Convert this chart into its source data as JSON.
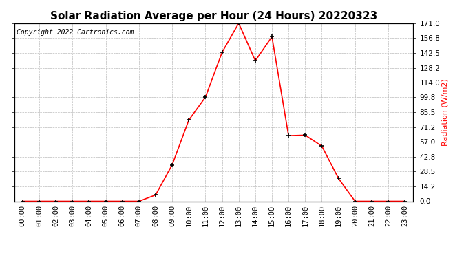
{
  "title": "Solar Radiation Average per Hour (24 Hours) 20220323",
  "copyright": "Copyright 2022 Cartronics.com",
  "ylabel": "Radiation (W/m2)",
  "hours": [
    "00:00",
    "01:00",
    "02:00",
    "03:00",
    "04:00",
    "05:00",
    "06:00",
    "07:00",
    "08:00",
    "09:00",
    "10:00",
    "11:00",
    "12:00",
    "13:00",
    "14:00",
    "15:00",
    "16:00",
    "17:00",
    "18:00",
    "19:00",
    "20:00",
    "21:00",
    "22:00",
    "23:00"
  ],
  "values": [
    0.0,
    0.0,
    0.0,
    0.0,
    0.0,
    0.0,
    0.0,
    0.0,
    6.0,
    35.0,
    78.0,
    100.0,
    143.0,
    171.0,
    135.0,
    158.0,
    63.0,
    63.5,
    53.0,
    22.0,
    0.0,
    0.0,
    0.0,
    0.0
  ],
  "line_color": "#ff0000",
  "marker": "+",
  "marker_color": "#000000",
  "marker_size": 5,
  "marker_linewidth": 1.2,
  "line_width": 1.2,
  "background_color": "#ffffff",
  "grid_color": "#bbbbbb",
  "title_fontsize": 11,
  "copyright_fontsize": 7,
  "ylabel_color": "#ff0000",
  "ylabel_fontsize": 8,
  "tick_fontsize": 7.5,
  "ylim": [
    0.0,
    171.0
  ],
  "ytick_labels": [
    "0.0",
    "14.2",
    "28.5",
    "42.8",
    "57.0",
    "71.2",
    "85.5",
    "99.8",
    "114.0",
    "128.2",
    "142.5",
    "156.8",
    "171.0"
  ],
  "ytick_values": [
    0.0,
    14.2,
    28.5,
    42.8,
    57.0,
    71.2,
    85.5,
    99.8,
    114.0,
    128.2,
    142.5,
    156.8,
    171.0
  ]
}
